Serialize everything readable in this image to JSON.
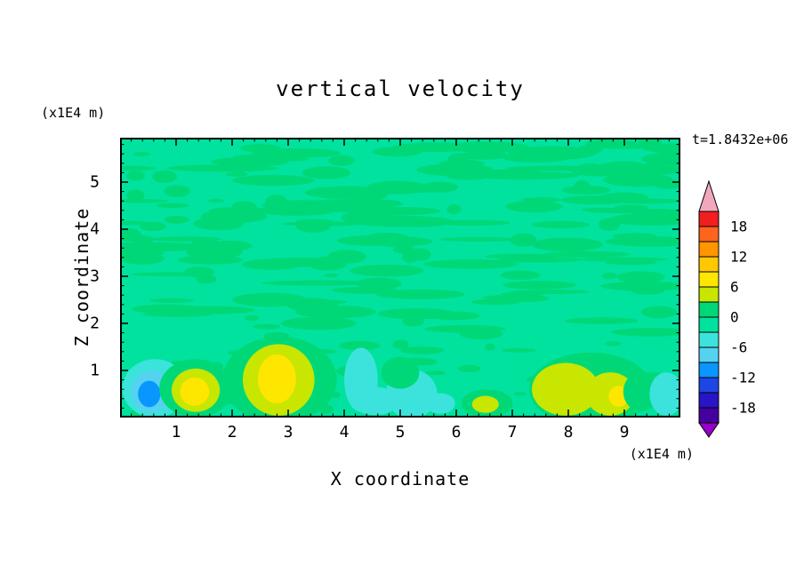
{
  "title": "vertical velocity",
  "time_label": "t=1.8432e+06",
  "axes": {
    "x": {
      "label": "X coordinate",
      "unit": "(x1E4 m)",
      "range": [
        0,
        10
      ],
      "major_ticks": [
        1,
        2,
        3,
        4,
        5,
        6,
        7,
        8,
        9
      ],
      "minor_step": 0.2
    },
    "z": {
      "label": "Z coordinate",
      "unit": "(x1E4 m)",
      "range": [
        0,
        5.94
      ],
      "major_ticks": [
        1,
        2,
        3,
        4,
        5
      ],
      "minor_step": 0.2
    }
  },
  "colorbar": {
    "tick_labels": [
      18,
      12,
      6,
      0,
      -6,
      -12,
      -18
    ],
    "over_color": "#f2a8bc",
    "under_color": "#9600c8",
    "segments": [
      {
        "from": 18,
        "to": 21,
        "color": "#f01e1e"
      },
      {
        "from": 15,
        "to": 18,
        "color": "#ff641e"
      },
      {
        "from": 12,
        "to": 15,
        "color": "#ff9600"
      },
      {
        "from": 9,
        "to": 12,
        "color": "#ffc800"
      },
      {
        "from": 6,
        "to": 9,
        "color": "#ffe600"
      },
      {
        "from": 3,
        "to": 6,
        "color": "#c8e600"
      },
      {
        "from": 0,
        "to": 3,
        "color": "#00d878"
      },
      {
        "from": -3,
        "to": 0,
        "color": "#00e29e"
      },
      {
        "from": -6,
        "to": -3,
        "color": "#3ce3dc"
      },
      {
        "from": -9,
        "to": -6,
        "color": "#55d2f0"
      },
      {
        "from": -12,
        "to": -9,
        "color": "#0a96ff"
      },
      {
        "from": -15,
        "to": -12,
        "color": "#1e46e6"
      },
      {
        "from": -18,
        "to": -15,
        "color": "#2a14c8"
      },
      {
        "from": -21,
        "to": -18,
        "color": "#4600a0"
      }
    ]
  },
  "chart_data": {
    "type": "heatmap",
    "title": "vertical velocity",
    "xlabel": "X coordinate (x1E4 m)",
    "ylabel": "Z coordinate (x1E4 m)",
    "time": "t=1.8432e+06",
    "x_range": [
      0,
      10
    ],
    "z_range": [
      0,
      5.94
    ],
    "value_units": "vertical velocity",
    "contour_interval": 3,
    "value_range": [
      -21,
      21
    ],
    "colorbar_labels": [
      18,
      12,
      6,
      0,
      -6,
      -12,
      -18
    ],
    "background_value": -1.5,
    "features": [
      {
        "x": 0.62,
        "z": 0.62,
        "rx": 0.58,
        "rz": 0.62,
        "value": -4.5
      },
      {
        "x": 0.56,
        "z": 0.55,
        "rx": 0.36,
        "rz": 0.44,
        "value": -7.5
      },
      {
        "x": 0.52,
        "z": 0.5,
        "rx": 0.2,
        "rz": 0.28,
        "value": -10.5
      },
      {
        "x": 1.35,
        "z": 0.62,
        "rx": 0.65,
        "rz": 0.62,
        "value": 1.5
      },
      {
        "x": 1.35,
        "z": 0.58,
        "rx": 0.43,
        "rz": 0.46,
        "value": 4.5
      },
      {
        "x": 1.33,
        "z": 0.55,
        "rx": 0.26,
        "rz": 0.3,
        "value": 7.5
      },
      {
        "x": 2.85,
        "z": 0.8,
        "rx": 1.02,
        "rz": 0.92,
        "value": 1.5
      },
      {
        "x": 2.83,
        "z": 0.8,
        "rx": 0.64,
        "rz": 0.76,
        "value": 4.5
      },
      {
        "x": 2.8,
        "z": 0.82,
        "rx": 0.34,
        "rz": 0.52,
        "value": 7.5
      },
      {
        "x": 4.3,
        "z": 0.8,
        "rx": 0.3,
        "rz": 0.68,
        "value": -4.5
      },
      {
        "x": 4.55,
        "z": 0.35,
        "rx": 0.42,
        "rz": 0.3,
        "value": -4.5
      },
      {
        "x": 5.2,
        "z": 0.5,
        "rx": 0.46,
        "rz": 0.52,
        "value": -4.5
      },
      {
        "x": 5.72,
        "z": 0.3,
        "rx": 0.26,
        "rz": 0.22,
        "value": -4.5
      },
      {
        "x": 5.0,
        "z": 0.95,
        "rx": 0.34,
        "rz": 0.34,
        "value": 1.5
      },
      {
        "x": 6.55,
        "z": 0.3,
        "rx": 0.46,
        "rz": 0.3,
        "value": 1.5
      },
      {
        "x": 6.52,
        "z": 0.28,
        "rx": 0.24,
        "rz": 0.18,
        "value": 4.5
      },
      {
        "x": 8.4,
        "z": 0.6,
        "rx": 1.1,
        "rz": 0.78,
        "value": 1.5
      },
      {
        "x": 7.95,
        "z": 0.6,
        "rx": 0.6,
        "rz": 0.56,
        "value": 4.5
      },
      {
        "x": 8.75,
        "z": 0.5,
        "rx": 0.44,
        "rz": 0.46,
        "value": 4.5
      },
      {
        "x": 8.9,
        "z": 0.45,
        "rx": 0.18,
        "rz": 0.22,
        "value": 7.5
      },
      {
        "x": 9.3,
        "z": 0.55,
        "rx": 0.32,
        "rz": 0.42,
        "value": 1.5
      },
      {
        "x": 9.75,
        "z": 0.5,
        "rx": 0.3,
        "rz": 0.46,
        "value": -4.5
      }
    ],
    "texture_bands": [
      {
        "seed": 7,
        "count": 150,
        "x_min": 0.05,
        "x_max": 9.95,
        "z_min": 1.75,
        "z_max": 5.88,
        "rx_min": 0.12,
        "rx_max": 0.8,
        "rz_min": 0.04,
        "rz_max": 0.15,
        "value": 1.5
      },
      {
        "seed": 13,
        "count": 45,
        "x_min": 0.1,
        "x_max": 9.9,
        "z_min": 0.05,
        "z_max": 1.75,
        "rx_min": 0.08,
        "rx_max": 0.4,
        "rz_min": 0.04,
        "rz_max": 0.12,
        "value": 1.5
      },
      {
        "seed": 21,
        "count": 25,
        "x_min": 0.2,
        "x_max": 9.8,
        "z_min": 2.2,
        "z_max": 5.8,
        "rx_min": 0.3,
        "rx_max": 1.1,
        "rz_min": 0.05,
        "rz_max": 0.12,
        "value": 1.5
      }
    ]
  }
}
